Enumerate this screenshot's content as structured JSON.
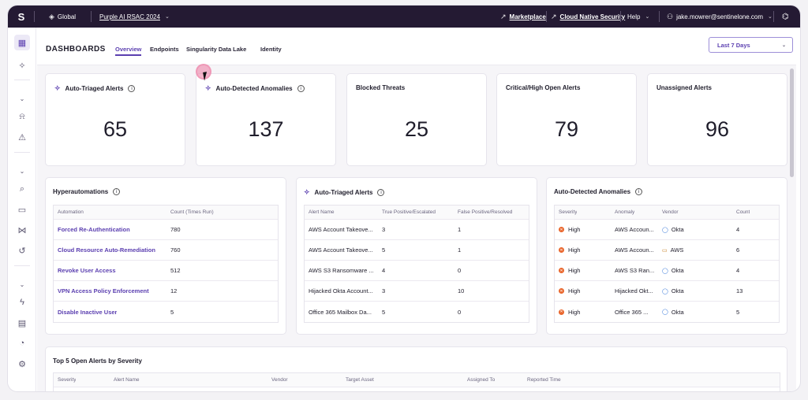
{
  "topbar": {
    "logo": "S",
    "scope": "Global",
    "site": "Purple AI RSAC 2024",
    "links": {
      "marketplace": "Marketplace",
      "cloud": "Cloud Native Security",
      "help": "Help"
    },
    "user": "jake.mowrer@sentinelone.com"
  },
  "header": {
    "title": "DASHBOARDS",
    "tabs": [
      "Overview",
      "Endpoints",
      "Singularity Data Lake",
      "Identity"
    ],
    "date_range": "Last 7 Days"
  },
  "kpis": [
    {
      "title": "Auto-Triaged Alerts",
      "value": "65"
    },
    {
      "title": "Auto-Detected Anomalies",
      "value": "137"
    },
    {
      "title": "Blocked Threats",
      "value": "25"
    },
    {
      "title": "Critical/High Open Alerts",
      "value": "79"
    },
    {
      "title": "Unassigned Alerts",
      "value": "96"
    }
  ],
  "hyper": {
    "title": "Hyperautomations",
    "columns": [
      "Automation",
      "Count (Times Run)"
    ],
    "rows": [
      {
        "name": "Forced Re-Authentication",
        "count": "780"
      },
      {
        "name": "Cloud Resource Auto-Remediation",
        "count": "760"
      },
      {
        "name": "Revoke User Access",
        "count": "512"
      },
      {
        "name": "VPN Access Policy Enforcement",
        "count": "12"
      },
      {
        "name": "Disable Inactive User",
        "count": "5"
      }
    ]
  },
  "triaged": {
    "title": "Auto-Triaged Alerts",
    "columns": [
      "Alert Name",
      "True Positive/Escalated",
      "False Positive/Resolved"
    ],
    "rows": [
      {
        "name": "AWS Account Takeove...",
        "tp": "3",
        "fp": "1"
      },
      {
        "name": "AWS Account Takeove...",
        "tp": "5",
        "fp": "1"
      },
      {
        "name": "AWS S3 Ransomware ...",
        "tp": "4",
        "fp": "0"
      },
      {
        "name": "Hijacked Okta Account...",
        "tp": "3",
        "fp": "10"
      },
      {
        "name": "Office 365 Mailbox Da...",
        "tp": "5",
        "fp": "0"
      }
    ]
  },
  "anomalies": {
    "title": "Auto-Detected Anomalies",
    "columns": [
      "Severity",
      "Anomaly",
      "Vendor",
      "Count"
    ],
    "rows": [
      {
        "severity": "High",
        "anomaly": "AWS Accoun...",
        "vendor": "Okta",
        "vendor_icon": "okta-icon",
        "count": "4"
      },
      {
        "severity": "High",
        "anomaly": "AWS Accoun...",
        "vendor": "AWS",
        "vendor_icon": "aws-icon",
        "count": "6"
      },
      {
        "severity": "High",
        "anomaly": "AWS S3 Ran...",
        "vendor": "Okta",
        "vendor_icon": "okta-icon",
        "count": "4"
      },
      {
        "severity": "High",
        "anomaly": "Hijacked Okt...",
        "vendor": "Okta",
        "vendor_icon": "okta-icon",
        "count": "13"
      },
      {
        "severity": "High",
        "anomaly": "Office 365 ...",
        "vendor": "Okta",
        "vendor_icon": "okta-icon",
        "count": "5"
      }
    ]
  },
  "top5": {
    "title": "Top 5 Open Alerts by Severity",
    "columns": [
      "Severity",
      "Alert Name",
      "Vendor",
      "Target Asset",
      "Assigned To",
      "Reported Time"
    ]
  },
  "colors": {
    "brand": "#5b3fb0",
    "topbar": "#241a33",
    "severity_high": "#e9662c"
  }
}
